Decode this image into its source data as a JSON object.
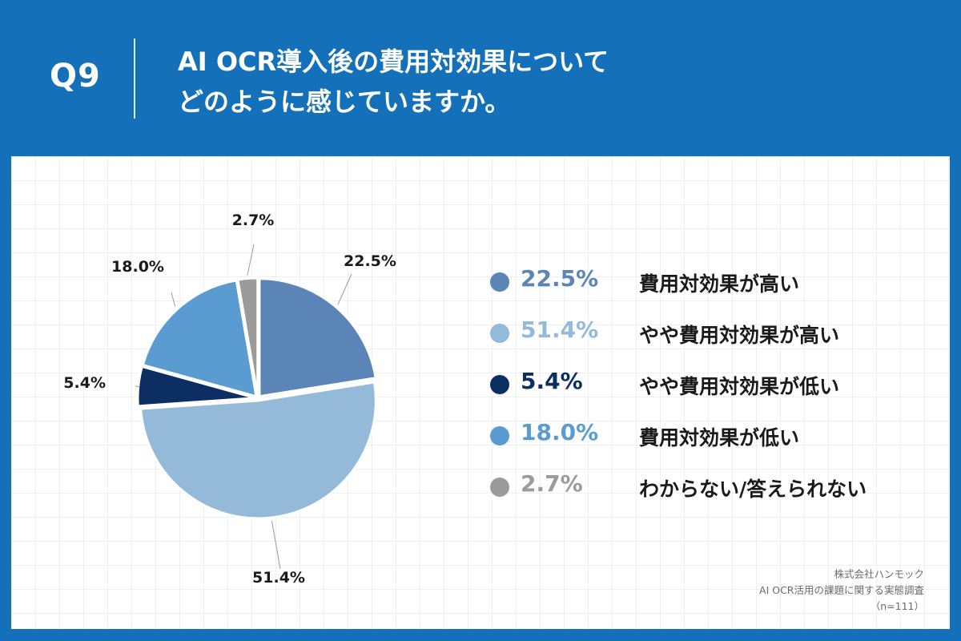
{
  "header": {
    "question_label": "Q9",
    "title_line1": "AI OCR導入後の費用対効果について",
    "title_line2": "どのように感じていますか。"
  },
  "colors": {
    "background": "#1470b8",
    "panel": "#ffffff"
  },
  "chart_data": {
    "type": "pie",
    "title": "AI OCR導入後の費用対効果についてどのように感じていますか。",
    "start": "12 o'clock, clockwise",
    "slices": [
      {
        "label": "費用対効果が高い",
        "value": 22.5,
        "value_label": "22.5%",
        "color": "#5b84b7"
      },
      {
        "label": "やや費用対効果が高い",
        "value": 51.4,
        "value_label": "51.4%",
        "color": "#94b9d9"
      },
      {
        "label": "やや費用対効果が低い",
        "value": 5.4,
        "value_label": "5.4%",
        "color": "#0d2e62"
      },
      {
        "label": "費用対効果が低い",
        "value": 18.0,
        "value_label": "18.0%",
        "color": "#5a9bd2"
      },
      {
        "label": "わからない/答えられない",
        "value": 2.7,
        "value_label": "2.7%",
        "color": "#9b9b9b"
      }
    ]
  },
  "legend": [
    {
      "pct": "22.5%",
      "text": "費用対効果が高い",
      "color": "#5b84b7"
    },
    {
      "pct": "51.4%",
      "text": "やや費用対効果が高い",
      "color": "#94b9d9"
    },
    {
      "pct": "5.4%",
      "text": "やや費用対効果が低い",
      "color": "#0d2e62"
    },
    {
      "pct": "18.0%",
      "text": "費用対効果が低い",
      "color": "#5a9bd2"
    },
    {
      "pct": "2.7%",
      "text": "わからない/答えられない",
      "color": "#9b9b9b"
    }
  ],
  "source": {
    "company": "株式会社ハンモック",
    "survey": "AI OCR活用の課題に関する実態調査",
    "sample": "（n=111）"
  }
}
